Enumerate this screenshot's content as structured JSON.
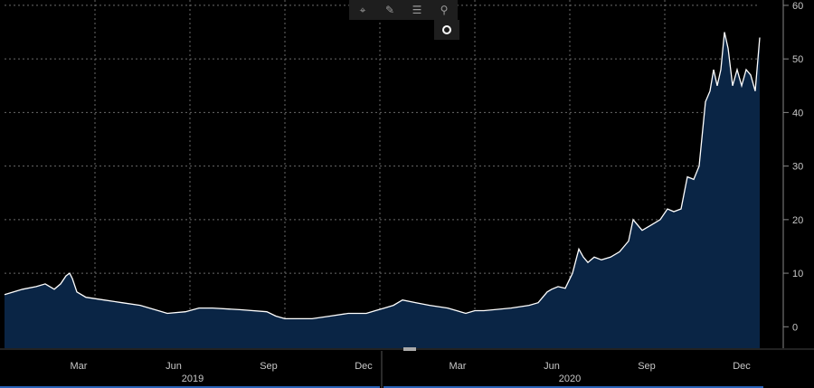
{
  "toolbar": {
    "icons": [
      "crosshair-icon",
      "pen-icon",
      "list-icon",
      "search-icon",
      "record-icon"
    ],
    "glyphs": [
      "⌖",
      "✎",
      "☰",
      "⚲"
    ]
  },
  "chart_data": {
    "type": "area",
    "x_months": [
      "Mar",
      "Jun",
      "Sep",
      "Dec",
      "Mar",
      "Jun",
      "Sep",
      "Dec"
    ],
    "x_years": [
      "2019",
      "2020"
    ],
    "y_ticks": [
      0,
      10,
      20,
      30,
      40,
      50,
      60
    ],
    "ylim": [
      -4,
      61
    ],
    "x_range": [
      0,
      835
    ],
    "xlabel": "",
    "ylabel": "",
    "grid": true,
    "colors": {
      "line": "#ffffff",
      "fill": "#0a2545",
      "grid": "#6a6a6a",
      "axis": "#2a63b8",
      "text": "#c8c8c8"
    },
    "series": [
      {
        "x": [
          0,
          20,
          35,
          45,
          55,
          62,
          68,
          72,
          75,
          80,
          90,
          110,
          130,
          150,
          170,
          180,
          200,
          215,
          230,
          260,
          290,
          300,
          310,
          320,
          340,
          360,
          380,
          400,
          410,
          420,
          430,
          440,
          455,
          470,
          490,
          510,
          520,
          530,
          560,
          580,
          590,
          600,
          605,
          612,
          620,
          628,
          635,
          640,
          645,
          652,
          660,
          670,
          680,
          690,
          695,
          700,
          705,
          715,
          725,
          733,
          740,
          748,
          755,
          762,
          768,
          775,
          780,
          784,
          788,
          792,
          796,
          800,
          805,
          810,
          815,
          820,
          825,
          830,
          835
        ],
        "y": [
          6,
          7,
          7.5,
          8,
          7,
          8,
          9.5,
          10,
          9,
          6.5,
          5.5,
          5,
          4.5,
          4,
          3,
          2.5,
          2.8,
          3.5,
          3.5,
          3.2,
          2.8,
          2,
          1.5,
          1.5,
          1.5,
          2,
          2.5,
          2.5,
          3,
          3.5,
          4,
          5,
          4.5,
          4,
          3.5,
          2.5,
          3,
          3,
          3.5,
          4,
          4.5,
          6.5,
          7,
          7.5,
          7.2,
          10,
          14.5,
          13,
          12,
          13,
          12.5,
          13,
          14,
          16,
          20,
          19,
          18,
          19,
          20,
          22,
          21.5,
          22,
          28,
          27.5,
          30,
          42,
          44,
          48,
          45,
          48,
          55,
          52,
          45,
          48,
          45,
          48,
          47,
          44,
          54
        ]
      }
    ]
  }
}
